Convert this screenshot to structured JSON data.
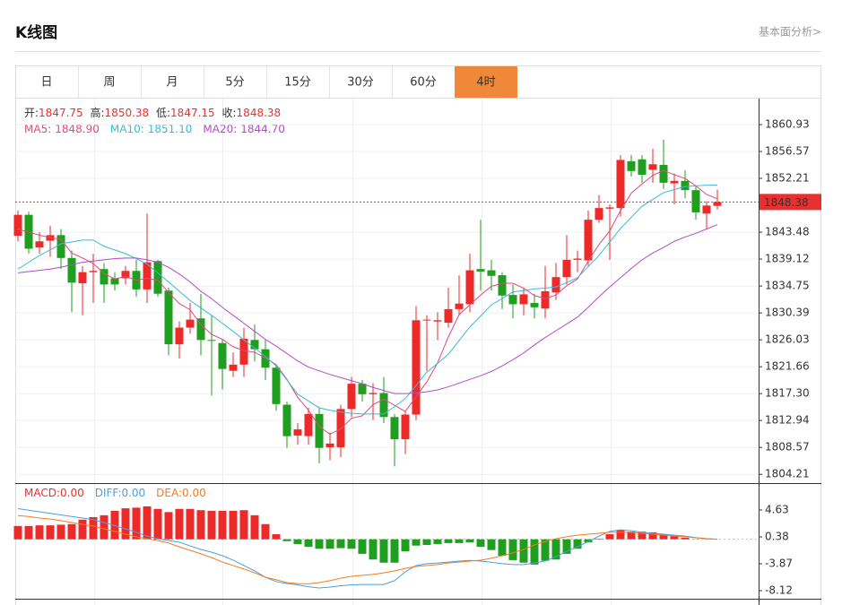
{
  "header": {
    "title": "K线图",
    "link": "基本面分析>"
  },
  "tabs": {
    "items": [
      "日",
      "周",
      "月",
      "5分",
      "15分",
      "30分",
      "60分",
      "4时"
    ],
    "active": 7,
    "active_color": "#f0883a"
  },
  "chart_data": [
    {
      "type": "candlestick",
      "quote": [
        {
          "label": "开:",
          "value": 1847.75
        },
        {
          "label": "高:",
          "value": 1850.38
        },
        {
          "label": "低:",
          "value": 1847.15
        },
        {
          "label": "收:",
          "value": 1848.38
        }
      ],
      "open": [
        1842.9,
        1846.3,
        1841,
        1842.1,
        1843,
        1839.3,
        1835.2,
        1837,
        1837.5,
        1836,
        1836,
        1837.2,
        1834.2,
        1838.8,
        1834,
        1825.3,
        1828,
        1829.5,
        1826,
        1825.5,
        1821,
        1822,
        1826,
        1824.5,
        1821.5,
        1815.5,
        1810.5,
        1810.4,
        1814,
        1808.6,
        1808.6,
        1814.8,
        1818.9,
        1817.2,
        1817.4,
        1813.5,
        1809.9,
        1813.9,
        1829.2,
        1829,
        1828.8,
        1831,
        1831.8,
        1837.5,
        1837.3,
        1836.5,
        1833.3,
        1831.8,
        1832,
        1831.1,
        1833.7,
        1836.2,
        1839,
        1838.9,
        1845.5,
        1847.3,
        1847.4,
        1855,
        1855.3,
        1853.6,
        1854.4,
        1851.4,
        1851.8,
        1850.3,
        1846.5,
        1847.75
      ],
      "high": [
        1847,
        1846.8,
        1843.5,
        1844.5,
        1844,
        1840.5,
        1838,
        1840,
        1838.5,
        1837,
        1838,
        1839,
        1846.5,
        1839,
        1834.5,
        1829,
        1832,
        1833.5,
        1830,
        1826,
        1824,
        1828,
        1828.5,
        1826,
        1822,
        1816,
        1812.5,
        1815,
        1815,
        1811,
        1815.5,
        1820,
        1819.5,
        1819,
        1820,
        1814,
        1814.5,
        1831.5,
        1830,
        1830.5,
        1834.5,
        1836.5,
        1840,
        1845.5,
        1839,
        1837,
        1835,
        1834.5,
        1833.5,
        1838,
        1838.5,
        1843,
        1840.5,
        1847,
        1849.5,
        1848,
        1856,
        1856,
        1856,
        1857,
        1858.5,
        1853,
        1853.5,
        1851,
        1848.5,
        1850.38
      ],
      "low": [
        1842,
        1840,
        1840,
        1839.5,
        1837.5,
        1830.5,
        1830,
        1832,
        1832,
        1834,
        1835,
        1833,
        1832,
        1833,
        1823.5,
        1823,
        1827,
        1823.5,
        1817,
        1818,
        1820,
        1820,
        1822.5,
        1819.5,
        1814.5,
        1808.5,
        1809,
        1809,
        1806,
        1806.5,
        1807,
        1813.5,
        1816,
        1813,
        1812.5,
        1805.5,
        1807.5,
        1813,
        1821,
        1826,
        1828,
        1830,
        1830.5,
        1834,
        1834,
        1831,
        1829.5,
        1830,
        1829.5,
        1829.5,
        1832.5,
        1835,
        1837,
        1838,
        1845,
        1839,
        1846,
        1852.5,
        1851.5,
        1851.5,
        1850.5,
        1848,
        1849,
        1845.5,
        1844,
        1847.15
      ],
      "close": [
        1846.3,
        1840.8,
        1842,
        1843,
        1839.3,
        1835.3,
        1837,
        1837.2,
        1835,
        1835,
        1837.2,
        1834.2,
        1838.6,
        1833.5,
        1825.3,
        1828,
        1829.3,
        1826,
        1825.9,
        1821.3,
        1822,
        1826.2,
        1824.5,
        1821.5,
        1815.6,
        1810.4,
        1811.5,
        1814,
        1808.5,
        1809.2,
        1814.8,
        1818.9,
        1817.2,
        1817.4,
        1813.5,
        1809.9,
        1813.9,
        1829.2,
        1829.3,
        1829.2,
        1831,
        1831.9,
        1837.3,
        1837.1,
        1836.4,
        1833.2,
        1831.8,
        1833.4,
        1831.3,
        1833.9,
        1836.2,
        1839,
        1839.2,
        1845.5,
        1847.4,
        1847.5,
        1855.2,
        1853.4,
        1852.8,
        1854.5,
        1851.5,
        1851.8,
        1850.3,
        1846.7,
        1847.8,
        1848.38
      ],
      "up_color": "#ec2a2a",
      "down_color": "#1f9e1f",
      "series": [
        {
          "name": "MA5:",
          "value_label": "1848.90",
          "color": "#e2487e",
          "values": [
            1844.0,
            1843.5,
            1843.0,
            1842.6,
            1842.3,
            1840.1,
            1839.3,
            1838.4,
            1836.8,
            1835.9,
            1836.3,
            1835.7,
            1836.0,
            1835.7,
            1833.7,
            1831.9,
            1830.9,
            1828.5,
            1826.9,
            1826.1,
            1824.9,
            1824.3,
            1824.0,
            1823.1,
            1822.0,
            1819.6,
            1816.7,
            1814.6,
            1812.0,
            1810.7,
            1811.6,
            1813.3,
            1813.7,
            1815.5,
            1816.4,
            1815.4,
            1814.4,
            1816.8,
            1819.2,
            1822.3,
            1826.5,
            1830.1,
            1831.7,
            1833.3,
            1834.7,
            1835.2,
            1835.2,
            1834.4,
            1833.2,
            1832.7,
            1833.3,
            1834.8,
            1835.9,
            1838.8,
            1841.5,
            1843.7,
            1847.0,
            1849.8,
            1851.3,
            1852.7,
            1853.5,
            1852.8,
            1852.2,
            1851.0,
            1849.6,
            1848.9
          ]
        },
        {
          "name": "MA10:",
          "value_label": "1851.10",
          "color": "#3cb8d8",
          "values": [
            1837.5,
            1838.6,
            1839.7,
            1840.6,
            1841.6,
            1841.9,
            1842.2,
            1842.2,
            1841.2,
            1840.6,
            1840.0,
            1839.2,
            1838.3,
            1836.9,
            1835.4,
            1833.9,
            1832.4,
            1831.2,
            1830.0,
            1828.7,
            1827.4,
            1826.0,
            1824.7,
            1823.3,
            1821.8,
            1819.5,
            1817.2,
            1816.1,
            1815.0,
            1814.6,
            1814.3,
            1814.1,
            1814.0,
            1814.0,
            1814.0,
            1815.2,
            1816.5,
            1818.6,
            1820.8,
            1822.2,
            1823.7,
            1825.9,
            1828.1,
            1829.9,
            1831.7,
            1832.7,
            1833.8,
            1834.0,
            1834.3,
            1834.4,
            1834.6,
            1835.3,
            1836.1,
            1837.9,
            1839.7,
            1841.9,
            1844.1,
            1845.9,
            1847.7,
            1848.8,
            1849.9,
            1850.4,
            1850.9,
            1851.0,
            1851.1,
            1851.1
          ]
        },
        {
          "name": "MA20:",
          "value_label": "1844.70",
          "color": "#b34bc8",
          "values": [
            1836.9,
            1837.1,
            1837.3,
            1837.5,
            1837.8,
            1838.2,
            1838.6,
            1838.8,
            1839.0,
            1839.2,
            1839.3,
            1839.3,
            1839.0,
            1838.6,
            1837.8,
            1836.7,
            1835.4,
            1833.9,
            1832.7,
            1831.3,
            1830.0,
            1828.7,
            1827.4,
            1826.1,
            1825.0,
            1823.8,
            1822.6,
            1821.6,
            1821.0,
            1820.4,
            1819.9,
            1819.4,
            1818.9,
            1818.3,
            1817.8,
            1817.3,
            1817.3,
            1817.4,
            1817.6,
            1817.9,
            1818.4,
            1819.0,
            1819.6,
            1820.2,
            1820.9,
            1821.8,
            1822.8,
            1823.9,
            1825.2,
            1826.4,
            1827.5,
            1828.6,
            1829.7,
            1831.3,
            1833.0,
            1834.6,
            1836.1,
            1837.6,
            1839.0,
            1840.1,
            1841.0,
            1842.0,
            1842.7,
            1843.3,
            1844.0,
            1844.7
          ]
        }
      ],
      "ylim": [
        1802.93,
        1865.15
      ],
      "yticks": [
        1860.93,
        1856.57,
        1852.21,
        1843.48,
        1839.12,
        1834.75,
        1830.39,
        1826.03,
        1821.66,
        {
          "value": 1817.3,
          "label": "1817.30"
        },
        1812.94,
        1808.57,
        1804.21
      ],
      "last_price": 1848.38,
      "last_price_color": "#e8312f",
      "grid": true
    },
    {
      "type": "macd",
      "up_color": "#ec2a2a",
      "down_color": "#1f9e1f",
      "series": [
        {
          "name": "MACD:",
          "value_label": "0.00",
          "color": "#e8312f",
          "kind": "bar",
          "values": [
            2.1,
            2.1,
            2.2,
            2.2,
            2.3,
            2.4,
            3.1,
            3.5,
            3.8,
            4.5,
            4.9,
            5.0,
            5.2,
            4.8,
            4.3,
            4.8,
            4.8,
            4.6,
            4.5,
            4.5,
            4.5,
            4.6,
            3.8,
            2.4,
            0.8,
            -0.3,
            -0.75,
            -1.2,
            -1.5,
            -1.5,
            -1.4,
            -1.5,
            -2.3,
            -3.2,
            -3.7,
            -3.7,
            -1.9,
            -1.0,
            -0.9,
            -0.75,
            -0.6,
            -0.6,
            -0.5,
            -1.2,
            -1.7,
            -2.6,
            -3.3,
            -3.7,
            -4.0,
            -3.4,
            -3.2,
            -2.3,
            -1.5,
            -0.5,
            0.1,
            0.8,
            1.5,
            1.2,
            1.2,
            1.1,
            0.8,
            0.5,
            0.24,
            -0.04,
            0.03,
            0
          ]
        },
        {
          "name": "DIFF:",
          "value_label": "0.00",
          "color": "#4a9fe0",
          "kind": "line",
          "values": [
            4.85,
            4.6,
            4.35,
            4.1,
            3.85,
            3.6,
            3.35,
            3.1,
            2.65,
            2.15,
            1.65,
            1.1,
            0.5,
            0.1,
            -0.2,
            -0.45,
            -1.05,
            -1.6,
            -2.05,
            -2.6,
            -3.3,
            -4.15,
            -5.0,
            -6.0,
            -6.7,
            -7.0,
            -7.2,
            -7.5,
            -7.7,
            -7.55,
            -7.35,
            -7.2,
            -7.15,
            -7.15,
            -7.15,
            -6.55,
            -5.15,
            -4.15,
            -3.85,
            -3.75,
            -3.6,
            -3.45,
            -3.35,
            -3.45,
            -3.65,
            -3.85,
            -4.0,
            -4.0,
            -3.75,
            -3.45,
            -2.75,
            -1.9,
            -1.2,
            -0.35,
            0.5,
            1.25,
            1.5,
            1.35,
            1.1,
            0.95,
            0.8,
            0.65,
            0.5,
            0.25,
            0.1,
            0
          ]
        },
        {
          "name": "DEA:",
          "value_label": "0.00",
          "color": "#f07c1e",
          "kind": "line",
          "values": [
            3.75,
            3.6,
            3.35,
            3.2,
            2.95,
            2.65,
            2.35,
            2.1,
            1.65,
            1.25,
            0.8,
            0.4,
            0.1,
            -0.2,
            -0.6,
            -1.2,
            -1.75,
            -2.3,
            -2.9,
            -3.6,
            -4.15,
            -4.7,
            -5.3,
            -6.0,
            -6.4,
            -6.85,
            -7.0,
            -7.05,
            -6.85,
            -6.55,
            -6.15,
            -5.85,
            -5.7,
            -5.55,
            -5.3,
            -5.0,
            -4.6,
            -4.3,
            -4.15,
            -4.0,
            -3.75,
            -3.6,
            -3.45,
            -3.3,
            -3.0,
            -2.6,
            -2.15,
            -1.6,
            -0.9,
            -0.35,
            0.1,
            0.4,
            0.65,
            0.8,
            0.95,
            1.1,
            1.1,
            1.1,
            0.95,
            0.8,
            0.65,
            0.5,
            0.4,
            0.25,
            0.1,
            0
          ]
        }
      ],
      "ylim": [
        -9.4,
        8.74
      ],
      "yticks": [
        4.63,
        0.38,
        -3.87,
        -8.12
      ]
    }
  ]
}
